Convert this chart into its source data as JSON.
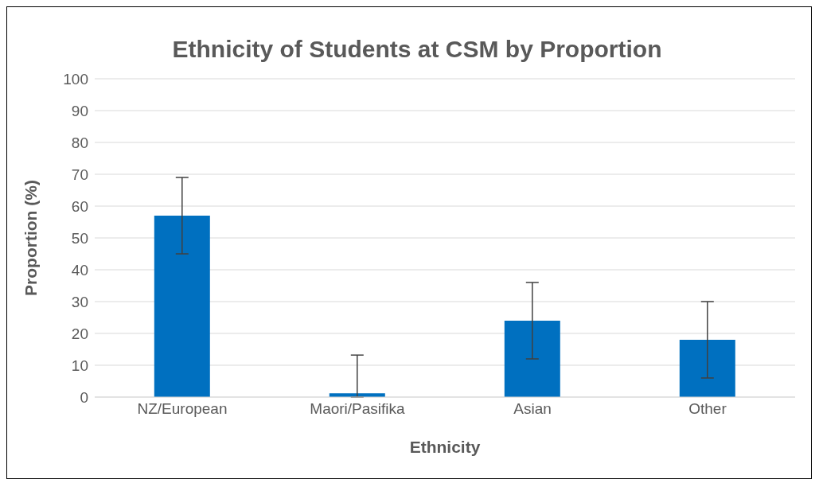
{
  "chart_data": {
    "type": "bar",
    "title": "Ethnicity of Students at CSM by Proportion",
    "xlabel": "Ethnicity",
    "ylabel": "Proportion (%)",
    "categories": [
      "NZ/European",
      "Maori/Pasifika",
      "Asian",
      "Other"
    ],
    "values": [
      57,
      1.2,
      24,
      18
    ],
    "errors": [
      12,
      [
        0,
        13.2
      ],
      12,
      12
    ],
    "color": "#0070c0",
    "ylim": [
      0,
      100
    ],
    "yticks": [
      0,
      10,
      20,
      30,
      40,
      50,
      60,
      70,
      80,
      90,
      100
    ],
    "grid": "y"
  }
}
